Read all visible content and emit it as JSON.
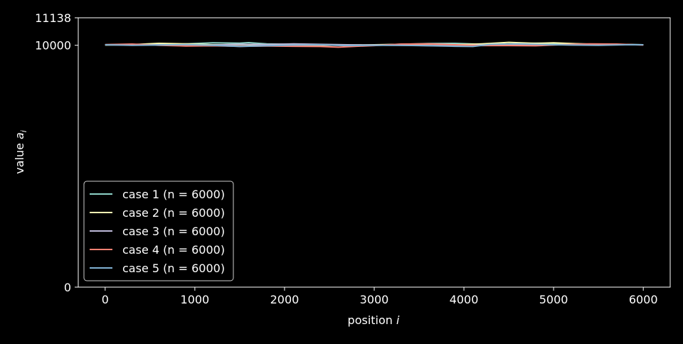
{
  "chart_data": {
    "type": "line",
    "title": "",
    "xlabel_main": "position ",
    "xlabel_var": "i",
    "ylabel_main": "value ",
    "ylabel_var": "a",
    "ylabel_sub": "i",
    "xlim": [
      -300,
      6300
    ],
    "ylim": [
      0,
      11138
    ],
    "xticks": [
      0,
      1000,
      2000,
      3000,
      4000,
      5000,
      6000
    ],
    "yticks": [
      0,
      10000,
      11138
    ],
    "grid": false,
    "legend_position": "lower-left",
    "series": [
      {
        "name": "case 1 (n = 6000)",
        "color": "#8dd3c7",
        "x": [
          0,
          300,
          600,
          900,
          1200,
          1500,
          1600,
          1800,
          2100,
          2400,
          2700,
          3000,
          3300,
          3600,
          3900,
          4200,
          4500,
          4800,
          5100,
          5400,
          5700,
          6000
        ],
        "y": [
          10020,
          10040,
          10010,
          10060,
          10100,
          10090,
          10110,
          10060,
          10040,
          10020,
          9990,
          10010,
          10040,
          10070,
          10080,
          10040,
          10050,
          10090,
          10070,
          10050,
          10040,
          10020
        ]
      },
      {
        "name": "case 2 (n = 6000)",
        "color": "#ffffb3",
        "x": [
          0,
          300,
          600,
          900,
          1200,
          1500,
          1800,
          2100,
          2400,
          2700,
          3000,
          3300,
          3600,
          3900,
          4200,
          4500,
          4800,
          5000,
          5300,
          5600,
          6000
        ],
        "y": [
          10010,
          10030,
          10080,
          10060,
          10020,
          10030,
          10010,
          9990,
          10000,
          10010,
          10020,
          10040,
          10050,
          10020,
          10060,
          10120,
          10080,
          10100,
          10060,
          10030,
          10020
        ]
      },
      {
        "name": "case 3 (n = 6000)",
        "color": "#bebada",
        "x": [
          0,
          300,
          600,
          900,
          1200,
          1500,
          1800,
          2100,
          2400,
          2700,
          3000,
          3300,
          3600,
          3900,
          4200,
          4500,
          4800,
          5100,
          5400,
          5700,
          6000
        ],
        "y": [
          10020,
          10010,
          10020,
          10000,
          10010,
          10040,
          10030,
          10060,
          10040,
          10020,
          10010,
          10000,
          9990,
          9990,
          10010,
          10030,
          10010,
          10020,
          10010,
          10030,
          10020
        ]
      },
      {
        "name": "case 4 (n = 6000)",
        "color": "#fb8072",
        "x": [
          0,
          300,
          600,
          900,
          1200,
          1500,
          1800,
          2100,
          2400,
          2600,
          2800,
          3000,
          3300,
          3600,
          3900,
          4200,
          4500,
          4800,
          5100,
          5400,
          5700,
          6000
        ],
        "y": [
          10030,
          10050,
          10000,
          9970,
          9980,
          9960,
          9970,
          9960,
          9950,
          9920,
          9960,
          9990,
          10050,
          10060,
          10020,
          9990,
          9990,
          9980,
          10030,
          10060,
          10050,
          10010
        ]
      },
      {
        "name": "case 5 (n = 6000)",
        "color": "#80b1d3",
        "x": [
          0,
          300,
          600,
          900,
          1200,
          1500,
          1800,
          2100,
          2400,
          2700,
          3000,
          3300,
          3600,
          3900,
          4100,
          4300,
          4600,
          4900,
          5200,
          5500,
          5800,
          6000
        ],
        "y": [
          10020,
          10000,
          10010,
          10030,
          10000,
          9950,
          9980,
          10010,
          10020,
          9990,
          10000,
          10000,
          9980,
          9960,
          9950,
          10040,
          10060,
          10030,
          10010,
          10000,
          10020,
          10020
        ]
      }
    ]
  }
}
